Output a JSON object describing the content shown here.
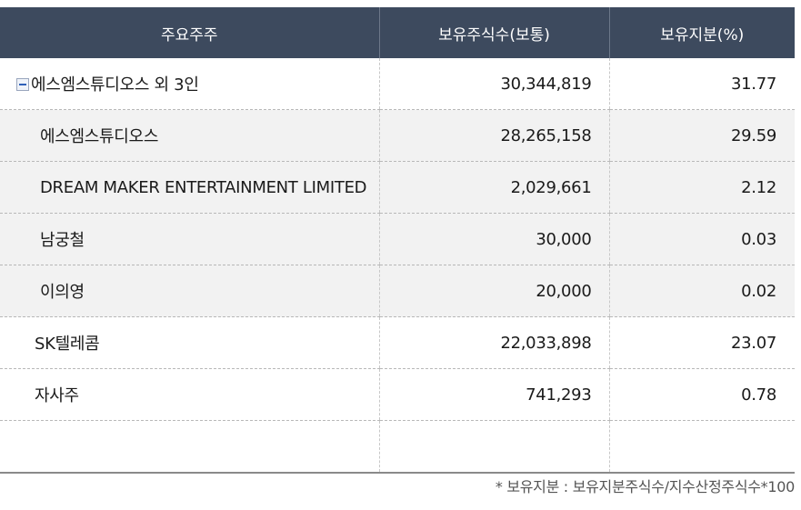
{
  "table": {
    "headers": [
      "주요주주",
      "보유주식수(보통)",
      "보유지분(%)"
    ],
    "rows": [
      {
        "name": "에스엠스튜디오스 외 3인",
        "shares": "30,344,819",
        "pct": "31.77"
      },
      {
        "name": "에스엠스튜디오스",
        "shares": "28,265,158",
        "pct": "29.59"
      },
      {
        "name": "DREAM MAKER ENTERTAINMENT LIMITED",
        "shares": "2,029,661",
        "pct": "2.12"
      },
      {
        "name": "남궁철",
        "shares": "30,000",
        "pct": "0.03"
      },
      {
        "name": "이의영",
        "shares": "20,000",
        "pct": "0.02"
      },
      {
        "name": "SK텔레콤",
        "shares": "22,033,898",
        "pct": "23.07"
      },
      {
        "name": "자사주",
        "shares": "741,293",
        "pct": "0.78"
      }
    ]
  },
  "footnote": "* 보유지분 : 보유지분주식수/지수산정주식수*100",
  "icons": {
    "collapse": "minus-square-icon"
  },
  "colors": {
    "header_bg": "#3d4a5e",
    "sub_row_bg": "#f2f2f2",
    "toggle_accent": "#2d5fb8"
  }
}
